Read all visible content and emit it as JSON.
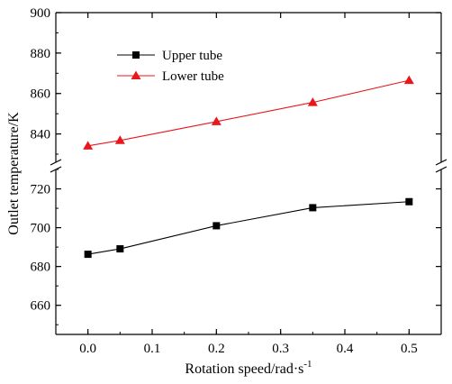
{
  "chart_data": {
    "type": "line",
    "title": "",
    "xlabel": "Rotation speed/rad·s",
    "xlabel_superscript": "-1",
    "ylabel": "Outlet temperature/K",
    "x": [
      0.0,
      0.05,
      0.2,
      0.35,
      0.5
    ],
    "xlim": [
      -0.05,
      0.55
    ],
    "xticks": [
      "0.0",
      "0.1",
      "0.2",
      "0.3",
      "0.4",
      "0.5"
    ],
    "ylim_lower": [
      645,
      730
    ],
    "ylim_upper": [
      826,
      900
    ],
    "yticks_lower": [
      "660",
      "680",
      "700",
      "720"
    ],
    "yticks_upper": [
      "840",
      "860",
      "880",
      "900"
    ],
    "axis_break": true,
    "grid": false,
    "legend_position": "top-left",
    "series": [
      {
        "name": "Upper tube",
        "marker": "square",
        "color": "#000000",
        "values": [
          686.3,
          689.1,
          701.0,
          710.3,
          713.4
        ]
      },
      {
        "name": "Lower tube",
        "marker": "triangle",
        "color": "#e8171d",
        "values": [
          834.1,
          836.8,
          846.1,
          855.6,
          866.5
        ]
      }
    ]
  }
}
